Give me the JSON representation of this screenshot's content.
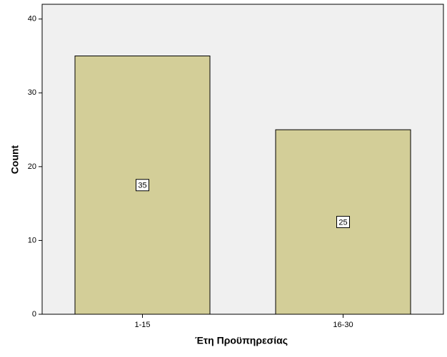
{
  "chart_data": {
    "type": "bar",
    "x_label": "Έτη Προϋπηρεσίας",
    "y_label": "Count",
    "categories": [
      "1-15",
      "16-30"
    ],
    "values": [
      35,
      25
    ],
    "color": "#d3ce98",
    "ylim": [
      0,
      42
    ],
    "yticks": [
      0,
      10,
      20,
      30,
      40
    ],
    "grid": false,
    "data_labels": true
  }
}
